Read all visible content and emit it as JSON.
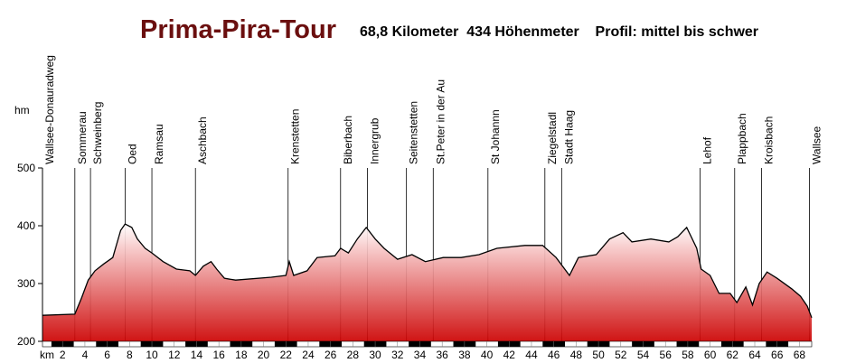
{
  "chart_data": {
    "type": "area",
    "title": "Prima-Pira-Tour",
    "subtitle": "68,8 Kilometer  434 Höhenmeter    Profil: mittel bis schwer",
    "ylabel": "hm",
    "xlabel": "km",
    "color": "#d01010",
    "line_color": "#000000",
    "xlim": [
      0.2,
      69.1
    ],
    "ylim": [
      200,
      500
    ],
    "yticks": [
      200,
      300,
      400,
      500
    ],
    "xticks": [
      2,
      4,
      6,
      8,
      10,
      12,
      14,
      16,
      18,
      20,
      22,
      24,
      26,
      28,
      30,
      32,
      34,
      36,
      38,
      40,
      42,
      44,
      46,
      48,
      50,
      52,
      54,
      56,
      58,
      60,
      62,
      64,
      66,
      68
    ],
    "x": [
      0.2,
      3.1,
      3.7,
      4.3,
      4.9,
      5.7,
      6.5,
      7.2,
      7.6,
      8.2,
      8.7,
      9.4,
      10.0,
      11.0,
      12.2,
      13.4,
      13.9,
      14.6,
      15.3,
      15.8,
      16.5,
      17.5,
      20.7,
      22.0,
      22.3,
      22.7,
      23.9,
      24.8,
      26.4,
      26.9,
      27.6,
      28.4,
      29.2,
      30.0,
      30.8,
      32.0,
      33.3,
      34.5,
      36.1,
      37.7,
      39.3,
      40.9,
      43.4,
      45.0,
      46.2,
      47.4,
      48.2,
      49.8,
      51.0,
      52.2,
      53.0,
      54.7,
      56.3,
      57.1,
      57.9,
      58.8,
      59.2,
      60.0,
      60.8,
      61.8,
      62.4,
      63.2,
      63.8,
      64.4,
      65.1,
      66.0,
      67.3,
      68.1,
      68.7,
      69.1
    ],
    "values": [
      245,
      247,
      275,
      306,
      322,
      334,
      345,
      392,
      403,
      397,
      377,
      361,
      353,
      338,
      325,
      322,
      314,
      330,
      338,
      325,
      309,
      306,
      311,
      314,
      338,
      314,
      322,
      345,
      348,
      361,
      353,
      377,
      397,
      377,
      361,
      342,
      350,
      338,
      345,
      345,
      350,
      361,
      366,
      366,
      345,
      314,
      345,
      350,
      377,
      388,
      372,
      377,
      372,
      381,
      397,
      361,
      325,
      314,
      283,
      283,
      267,
      294,
      263,
      300,
      320,
      309,
      291,
      278,
      261,
      241
    ],
    "markers": [
      {
        "label": "Wallsee-Donauradweg",
        "x": 0.2
      },
      {
        "label": "Sommerau",
        "x": 3.1
      },
      {
        "label": "Schweinberg",
        "x": 4.5
      },
      {
        "label": "Oed",
        "x": 7.6
      },
      {
        "label": "Ramsau",
        "x": 10.0
      },
      {
        "label": "Aschbach",
        "x": 13.9
      },
      {
        "label": "Krenstetten",
        "x": 22.2
      },
      {
        "label": "Biberbach",
        "x": 26.9
      },
      {
        "label": "Innergrub",
        "x": 29.3
      },
      {
        "label": "Seitenstetten",
        "x": 32.8
      },
      {
        "label": "St.Peter in der Au",
        "x": 35.2
      },
      {
        "label": "St Johannn",
        "x": 40.1
      },
      {
        "label": "Ziegelstadl",
        "x": 45.2
      },
      {
        "label": "Stadt Haag",
        "x": 46.7
      },
      {
        "label": "Lehof",
        "x": 59.1
      },
      {
        "label": "Plappbach",
        "x": 62.2
      },
      {
        "label": "Kroisbach",
        "x": 64.6
      },
      {
        "label": "Wallsee",
        "x": 68.9
      }
    ]
  }
}
